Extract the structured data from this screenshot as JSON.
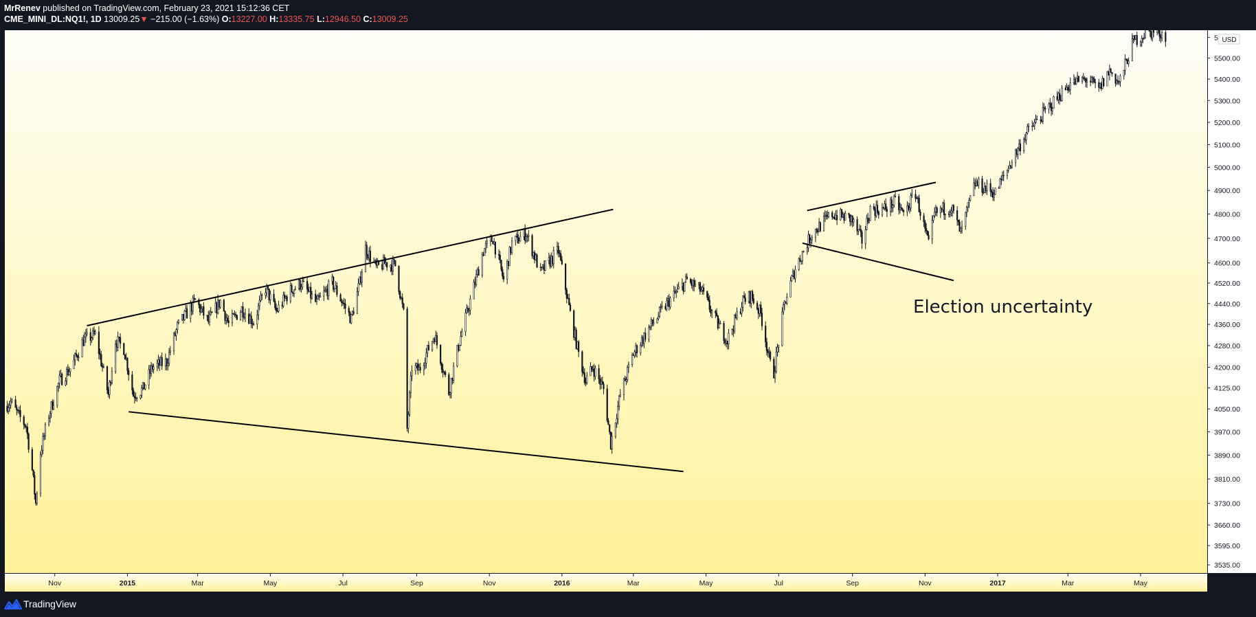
{
  "header": {
    "author": "MrRenev",
    "published": "published on TradingView.com, February 23, 2021 15:12:36 CET",
    "symbol": "CME_MINI_DL:NQ1!, 1D",
    "last": "13009.25",
    "change_arrow": "▼",
    "change": "−215.00 (−1.63%)",
    "o_label": "O:",
    "o_value": "13227.00",
    "h_label": "H:",
    "h_value": "13335.75",
    "l_label": "L:",
    "l_value": "12946.50",
    "c_label": "C:",
    "c_value": "13009.25"
  },
  "footer": {
    "brand": "TradingView"
  },
  "colors": {
    "background": "#131722",
    "bg_top": "#fffef8",
    "bg_bottom": "#fff29a",
    "candle": "#131722",
    "text": "#131722",
    "down": "#ef5350"
  },
  "chart_data": {
    "type": "candlestick",
    "currency": "USD",
    "y_scale": "log",
    "y_ticks": [
      "5600.00",
      "5500.00",
      "5400.00",
      "5300.00",
      "5200.00",
      "5100.00",
      "5000.00",
      "4900.00",
      "4800.00",
      "4700.00",
      "4600.00",
      "4520.00",
      "4440.00",
      "4360.00",
      "4280.00",
      "4200.00",
      "4125.00",
      "4050.00",
      "3970.00",
      "3890.00",
      "3810.00",
      "3730.00",
      "3660.00",
      "3595.00",
      "3535.00"
    ],
    "x_ticks": [
      {
        "label": "Nov",
        "date": "2014-11-01",
        "bold": false
      },
      {
        "label": "2015",
        "date": "2015-01-01",
        "bold": true
      },
      {
        "label": "Mar",
        "date": "2015-03-01",
        "bold": false
      },
      {
        "label": "May",
        "date": "2015-05-01",
        "bold": false
      },
      {
        "label": "Jul",
        "date": "2015-07-01",
        "bold": false
      },
      {
        "label": "Sep",
        "date": "2015-09-01",
        "bold": false
      },
      {
        "label": "Nov",
        "date": "2015-11-01",
        "bold": false
      },
      {
        "label": "2016",
        "date": "2016-01-01",
        "bold": true
      },
      {
        "label": "Mar",
        "date": "2016-03-01",
        "bold": false
      },
      {
        "label": "May",
        "date": "2016-05-01",
        "bold": false
      },
      {
        "label": "Jul",
        "date": "2016-07-01",
        "bold": false
      },
      {
        "label": "Sep",
        "date": "2016-09-01",
        "bold": false
      },
      {
        "label": "Nov",
        "date": "2016-11-01",
        "bold": false
      },
      {
        "label": "2017",
        "date": "2017-01-01",
        "bold": true
      },
      {
        "label": "Mar",
        "date": "2017-03-01",
        "bold": false
      },
      {
        "label": "May",
        "date": "2017-05-01",
        "bold": false
      }
    ],
    "x_range": [
      "2014-09-20",
      "2017-06-26"
    ],
    "y_range": [
      3510,
      5635
    ],
    "price_path": [
      [
        "2014-09-20",
        4060
      ],
      [
        "2014-09-25",
        4075
      ],
      [
        "2014-10-01",
        4030
      ],
      [
        "2014-10-08",
        3990
      ],
      [
        "2014-10-13",
        3840
      ],
      [
        "2014-10-16",
        3730
      ],
      [
        "2014-10-20",
        3900
      ],
      [
        "2014-10-27",
        4030
      ],
      [
        "2014-11-05",
        4150
      ],
      [
        "2014-11-15",
        4200
      ],
      [
        "2014-11-25",
        4300
      ],
      [
        "2014-12-05",
        4320
      ],
      [
        "2014-12-12",
        4180
      ],
      [
        "2014-12-16",
        4100
      ],
      [
        "2014-12-22",
        4300
      ],
      [
        "2014-12-29",
        4270
      ],
      [
        "2015-01-06",
        4100
      ],
      [
        "2015-01-14",
        4120
      ],
      [
        "2015-01-22",
        4200
      ],
      [
        "2015-02-03",
        4220
      ],
      [
        "2015-02-12",
        4350
      ],
      [
        "2015-02-27",
        4450
      ],
      [
        "2015-03-10",
        4370
      ],
      [
        "2015-03-20",
        4450
      ],
      [
        "2015-03-27",
        4360
      ],
      [
        "2015-04-07",
        4420
      ],
      [
        "2015-04-17",
        4370
      ],
      [
        "2015-04-27",
        4500
      ],
      [
        "2015-05-06",
        4410
      ],
      [
        "2015-05-18",
        4490
      ],
      [
        "2015-05-27",
        4520
      ],
      [
        "2015-06-09",
        4440
      ],
      [
        "2015-06-22",
        4520
      ],
      [
        "2015-07-08",
        4380
      ],
      [
        "2015-07-15",
        4520
      ],
      [
        "2015-07-20",
        4660
      ],
      [
        "2015-07-29",
        4580
      ],
      [
        "2015-08-06",
        4600
      ],
      [
        "2015-08-14",
        4590
      ],
      [
        "2015-08-21",
        4400
      ],
      [
        "2015-08-24",
        3980
      ],
      [
        "2015-08-28",
        4200
      ],
      [
        "2015-09-03",
        4190
      ],
      [
        "2015-09-16",
        4320
      ],
      [
        "2015-09-28",
        4110
      ],
      [
        "2015-10-06",
        4280
      ],
      [
        "2015-10-16",
        4450
      ],
      [
        "2015-10-27",
        4650
      ],
      [
        "2015-11-04",
        4700
      ],
      [
        "2015-11-13",
        4530
      ],
      [
        "2015-11-20",
        4680
      ],
      [
        "2015-12-02",
        4720
      ],
      [
        "2015-12-14",
        4560
      ],
      [
        "2015-12-29",
        4650
      ],
      [
        "2016-01-08",
        4400
      ],
      [
        "2016-01-15",
        4250
      ],
      [
        "2016-01-21",
        4150
      ],
      [
        "2016-01-27",
        4200
      ],
      [
        "2016-02-05",
        4120
      ],
      [
        "2016-02-11",
        3930
      ],
      [
        "2016-02-19",
        4100
      ],
      [
        "2016-03-01",
        4250
      ],
      [
        "2016-03-15",
        4350
      ],
      [
        "2016-03-31",
        4450
      ],
      [
        "2016-04-15",
        4530
      ],
      [
        "2016-04-27",
        4490
      ],
      [
        "2016-05-11",
        4360
      ],
      [
        "2016-05-19",
        4300
      ],
      [
        "2016-06-01",
        4450
      ],
      [
        "2016-06-08",
        4470
      ],
      [
        "2016-06-16",
        4400
      ],
      [
        "2016-06-24",
        4210
      ],
      [
        "2016-06-27",
        4180
      ],
      [
        "2016-07-06",
        4440
      ],
      [
        "2016-07-15",
        4580
      ],
      [
        "2016-07-29",
        4720
      ],
      [
        "2016-08-15",
        4800
      ],
      [
        "2016-08-31",
        4780
      ],
      [
        "2016-09-09",
        4690
      ],
      [
        "2016-09-16",
        4820
      ],
      [
        "2016-09-27",
        4820
      ],
      [
        "2016-10-07",
        4850
      ],
      [
        "2016-10-14",
        4800
      ],
      [
        "2016-10-24",
        4890
      ],
      [
        "2016-11-04",
        4670
      ],
      [
        "2016-11-09",
        4800
      ],
      [
        "2016-11-16",
        4820
      ],
      [
        "2016-11-23",
        4830
      ],
      [
        "2016-12-01",
        4720
      ],
      [
        "2016-12-13",
        4930
      ],
      [
        "2016-12-30",
        4890
      ],
      [
        "2017-01-06",
        4960
      ],
      [
        "2017-01-25",
        5150
      ],
      [
        "2017-02-15",
        5280
      ],
      [
        "2017-03-03",
        5380
      ],
      [
        "2017-03-17",
        5400
      ],
      [
        "2017-03-27",
        5350
      ],
      [
        "2017-04-05",
        5440
      ],
      [
        "2017-04-13",
        5380
      ],
      [
        "2017-04-25",
        5580
      ],
      [
        "2017-05-05",
        5620
      ],
      [
        "2017-05-15",
        5630
      ],
      [
        "2017-05-22",
        5610
      ]
    ],
    "trendlines": [
      {
        "from": [
          "2014-11-28",
          4355
        ],
        "to": [
          "2016-02-13",
          4820
        ]
      },
      {
        "from": [
          "2015-01-02",
          4040
        ],
        "to": [
          "2016-04-12",
          3835
        ]
      },
      {
        "from": [
          "2016-07-25",
          4815
        ],
        "to": [
          "2016-11-10",
          4935
        ]
      },
      {
        "from": [
          "2016-07-21",
          4680
        ],
        "to": [
          "2016-11-25",
          4530
        ]
      }
    ],
    "annotation": {
      "text": "Election uncertainty",
      "date": "2016-10-22",
      "price": 4405
    }
  }
}
